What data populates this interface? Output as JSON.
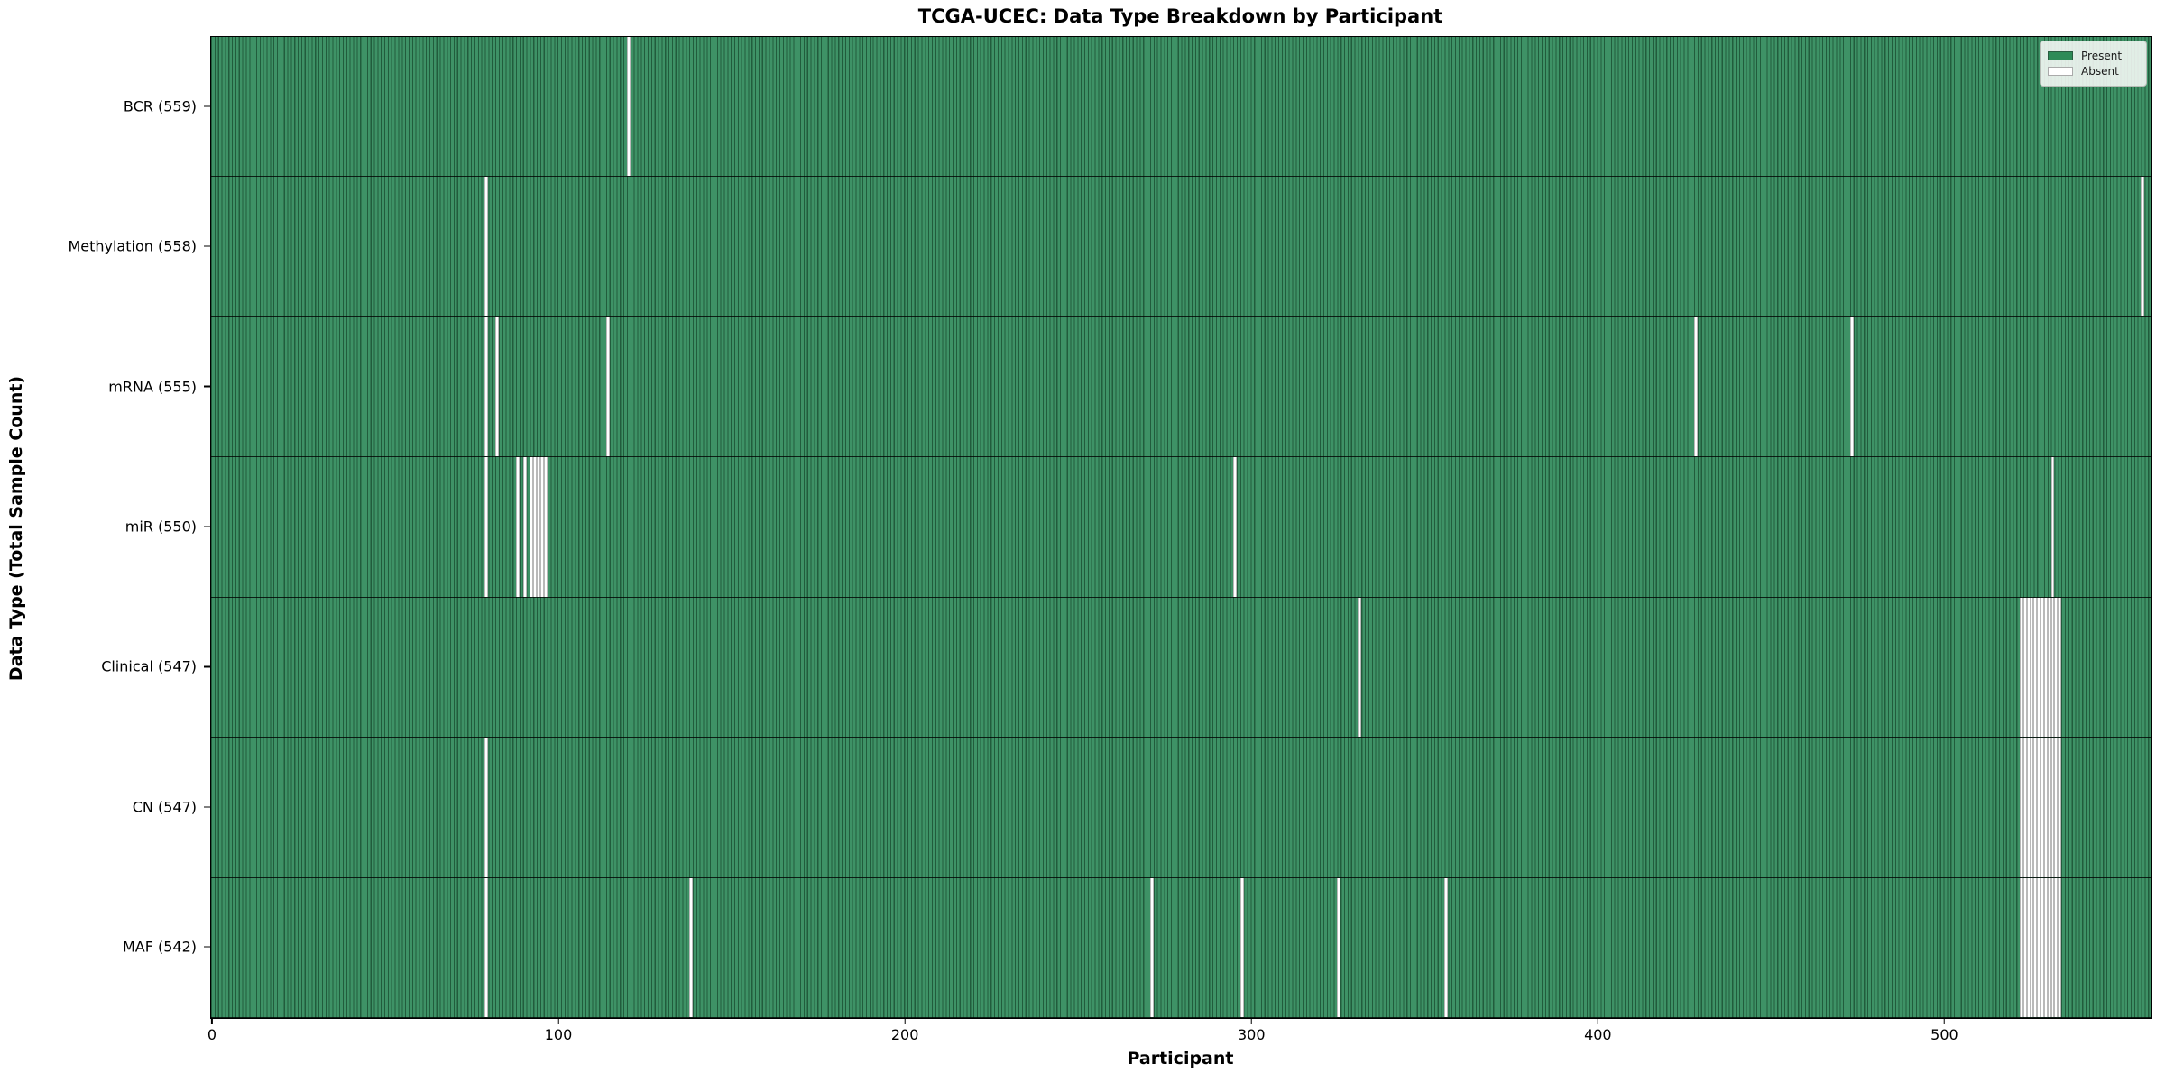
{
  "chart_data": {
    "type": "heatmap",
    "title": "TCGA-UCEC: Data Type Breakdown by Participant",
    "xlabel": "Participant",
    "ylabel": "Data Type (Total Sample Count)",
    "x_ticks": [
      0,
      100,
      200,
      300,
      400,
      500
    ],
    "n_participants": 560,
    "xlim": [
      -0.5,
      559.5
    ],
    "grid": false,
    "legend_position": "upper right",
    "legend": [
      {
        "label": "Present",
        "color": "#2e8b57"
      },
      {
        "label": "Absent",
        "color": "#ffffff"
      }
    ],
    "colors": {
      "present_face": "#3e9266",
      "present_edge": "#215c3c",
      "absent_face": "#ffffff",
      "absent_edge": "#b9b9b9",
      "row_divider": "#0a1f14",
      "legend_present_swatch": "#2e8b57",
      "legend_swatch_border": "#2a5c40",
      "absent_swatch_border": "#aaaaaa"
    },
    "rows": [
      {
        "data_type": "BCR",
        "total": 559,
        "label": "BCR (559)",
        "absent": [
          120
        ]
      },
      {
        "data_type": "Methylation",
        "total": 558,
        "label": "Methylation (558)",
        "absent": [
          79,
          557
        ]
      },
      {
        "data_type": "mRNA",
        "total": 555,
        "label": "mRNA (555)",
        "absent": [
          79,
          82,
          114,
          428,
          473
        ]
      },
      {
        "data_type": "miR",
        "total": 550,
        "label": "miR (550)",
        "absent": [
          79,
          88,
          90,
          92,
          93,
          94,
          95,
          96,
          295,
          531
        ]
      },
      {
        "data_type": "Clinical",
        "total": 547,
        "label": "Clinical (547)",
        "absent": [
          331,
          522,
          523,
          524,
          525,
          526,
          527,
          528,
          529,
          530,
          531,
          532,
          533
        ]
      },
      {
        "data_type": "CN",
        "total": 547,
        "label": "CN (547)",
        "absent": [
          79,
          522,
          523,
          524,
          525,
          526,
          527,
          528,
          529,
          530,
          531,
          532,
          533
        ]
      },
      {
        "data_type": "MAF",
        "total": 542,
        "label": "MAF (542)",
        "absent": [
          79,
          138,
          271,
          297,
          325,
          356,
          522,
          523,
          524,
          525,
          526,
          527,
          528,
          529,
          530,
          531,
          532,
          533
        ]
      }
    ]
  }
}
